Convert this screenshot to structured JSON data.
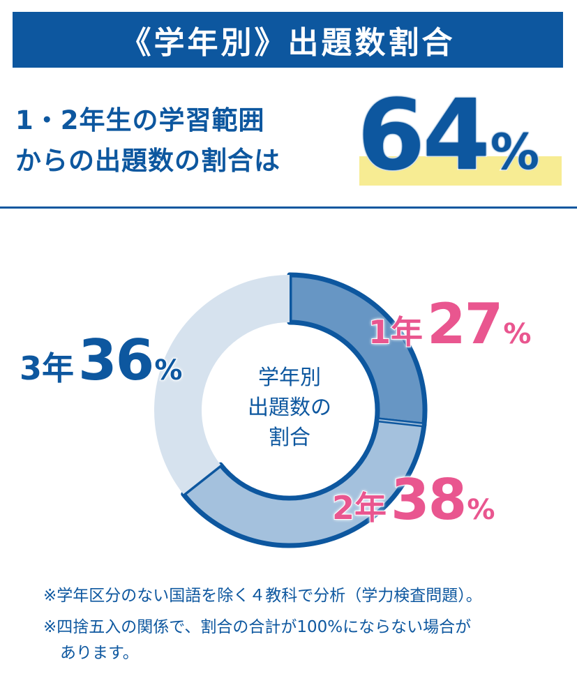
{
  "header": {
    "title": "《学年別》出題数割合",
    "headline_line1": "1・2年生の学習範囲",
    "headline_line2": "からの出題数の割合は",
    "headline_value": "64",
    "headline_unit": "%"
  },
  "chart_data": {
    "type": "pie",
    "center_label_lines": [
      "学年別",
      "出題数の",
      "割合"
    ],
    "slices": [
      {
        "grade": "1年",
        "value": 27,
        "unit": "%",
        "color": "#6796c4",
        "label_color": "#e9568f"
      },
      {
        "grade": "2年",
        "value": 38,
        "unit": "%",
        "color": "#a4c1dd",
        "label_color": "#e9568f"
      },
      {
        "grade": "3年",
        "value": 36,
        "unit": "%",
        "color": "#d6e2ee",
        "label_color": "#0d579f"
      }
    ],
    "accent_color": "#0d579f"
  },
  "notes": [
    "※学年区分のない国語を除く４教科で分析（学力検査問題）。",
    "※四捨五入の関係で、割合の合計が100%にならない場合が",
    "あります。"
  ]
}
